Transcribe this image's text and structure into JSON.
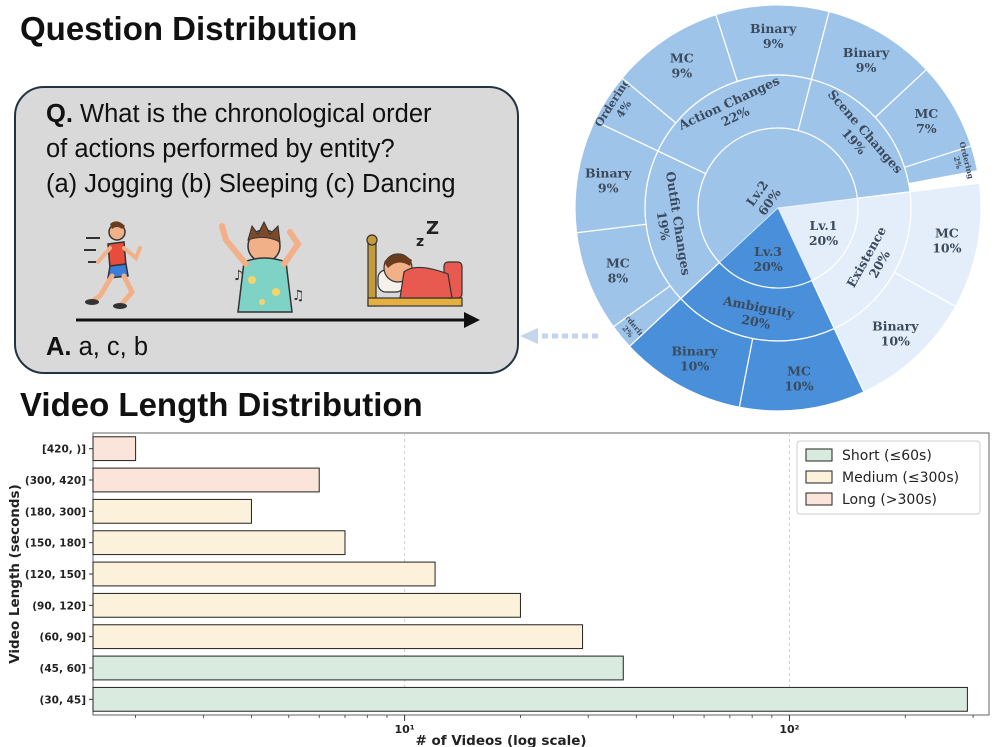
{
  "headings": {
    "question_distribution": "Question Distribution",
    "video_length_distribution": "Video Length Distribution"
  },
  "question_card": {
    "q_prefix": "Q.",
    "q_line1": " What is the chronological order",
    "q_line2": "of actions performed by entity?",
    "q_line3": "(a) Jogging (b) Sleeping (c) Dancing",
    "illustrations": [
      "runner-icon",
      "dancer-icon",
      "sleeper-icon"
    ],
    "a_prefix": "A.",
    "a_text": " a, c, b"
  },
  "chart_data": [
    {
      "type": "pie",
      "subtype": "sunburst",
      "center": {
        "label": "Lv.2",
        "value": "60%"
      },
      "colors": {
        "lv2": "#9fc4ea",
        "lv3": "#4a8fd9",
        "lv1": "#e3eefa"
      },
      "levels": [
        {
          "name": "Lv.2",
          "value": 60,
          "children": [
            {
              "name": "Outfit Changes",
              "value": 19,
              "children": [
                {
                  "name": "Ordering",
                  "value": 2
                },
                {
                  "name": "MC",
                  "value": 8
                },
                {
                  "name": "Binary",
                  "value": 9
                }
              ]
            },
            {
              "name": "Action Changes",
              "value": 22,
              "children": [
                {
                  "name": "Ordering",
                  "value": 4
                },
                {
                  "name": "MC",
                  "value": 9
                },
                {
                  "name": "Binary",
                  "value": 9
                }
              ]
            },
            {
              "name": "Scene Changes",
              "value": 19,
              "children": [
                {
                  "name": "Binary",
                  "value": 9
                },
                {
                  "name": "MC",
                  "value": 7
                },
                {
                  "name": "Ordering",
                  "value": 2
                }
              ]
            }
          ]
        },
        {
          "name": "Lv.1",
          "value": 20,
          "children": [
            {
              "name": "Existence",
              "value": 20,
              "children": [
                {
                  "name": "MC",
                  "value": 10
                },
                {
                  "name": "Binary",
                  "value": 10
                }
              ]
            }
          ]
        },
        {
          "name": "Lv.3",
          "value": 20,
          "children": [
            {
              "name": "Ambiguity",
              "value": 20,
              "children": [
                {
                  "name": "MC",
                  "value": 10
                },
                {
                  "name": "Binary",
                  "value": 10
                }
              ]
            }
          ]
        }
      ]
    },
    {
      "type": "bar",
      "orientation": "horizontal",
      "xscale": "log",
      "xlabel": "# of Videos (log scale)",
      "ylabel": "Video Length (seconds)",
      "xlim": [
        1.55,
        330
      ],
      "x_ticks": [
        10,
        100
      ],
      "x_tick_labels": [
        "10¹",
        "10²"
      ],
      "grid": true,
      "legend_position": "top-right",
      "categories": [
        "(30, 45]",
        "(45, 60]",
        "(60, 90]",
        "(90, 120]",
        "(120, 150]",
        "(150, 180]",
        "(180, 300]",
        "(300, 420]",
        "[420, )]"
      ],
      "values": [
        290,
        37,
        29,
        20,
        12,
        7,
        4,
        6,
        2
      ],
      "groups": [
        "Short",
        "Short",
        "Medium",
        "Medium",
        "Medium",
        "Medium",
        "Medium",
        "Long",
        "Long"
      ],
      "legend": [
        {
          "key": "Short",
          "label": "Short (≤60s)",
          "color": "#d9eadf"
        },
        {
          "key": "Medium",
          "label": "Medium (≤300s)",
          "color": "#fcf1da"
        },
        {
          "key": "Long",
          "label": "Long (>300s)",
          "color": "#fbe4da"
        }
      ]
    }
  ]
}
